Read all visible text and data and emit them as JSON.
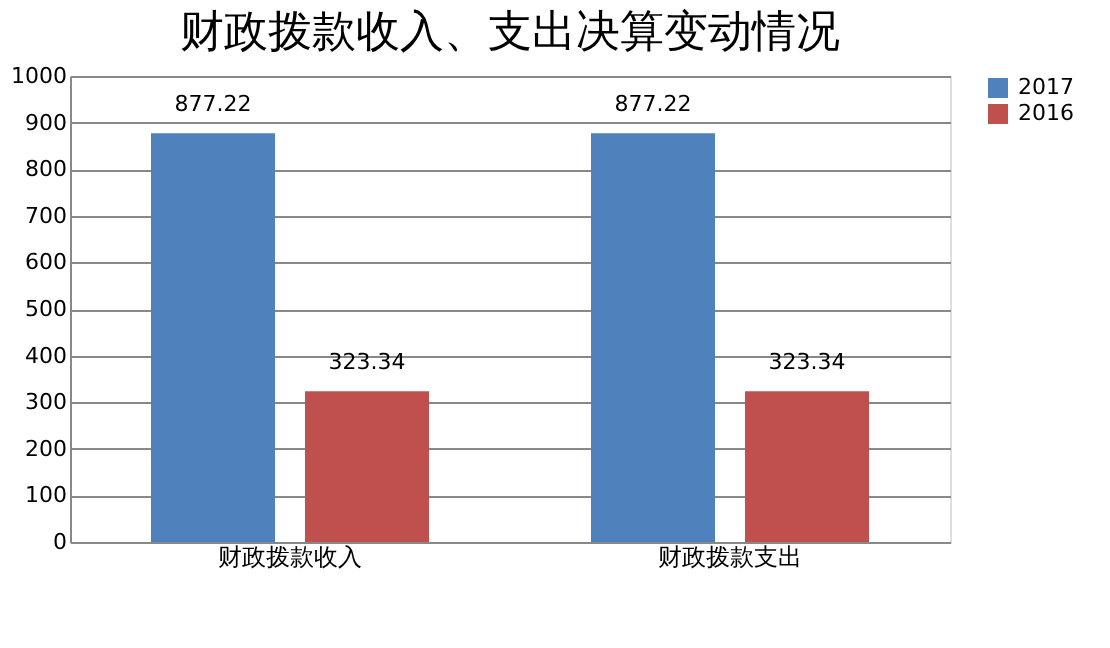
{
  "chart_data": {
    "type": "bar",
    "title": "财政拨款收入、支出决算变动情况",
    "categories": [
      "财政拨款收入",
      "财政拨款支出"
    ],
    "series": [
      {
        "name": "2017",
        "color": "#4f81bd",
        "values": [
          877.22,
          877.22
        ]
      },
      {
        "name": "2016",
        "color": "#c0504d",
        "values": [
          323.34,
          323.34
        ]
      }
    ],
    "ylim": [
      0,
      1000
    ],
    "yticks": [
      0,
      100,
      200,
      300,
      400,
      500,
      600,
      700,
      800,
      900,
      1000
    ],
    "grid": "y",
    "legend": "right",
    "data_labels": true
  }
}
